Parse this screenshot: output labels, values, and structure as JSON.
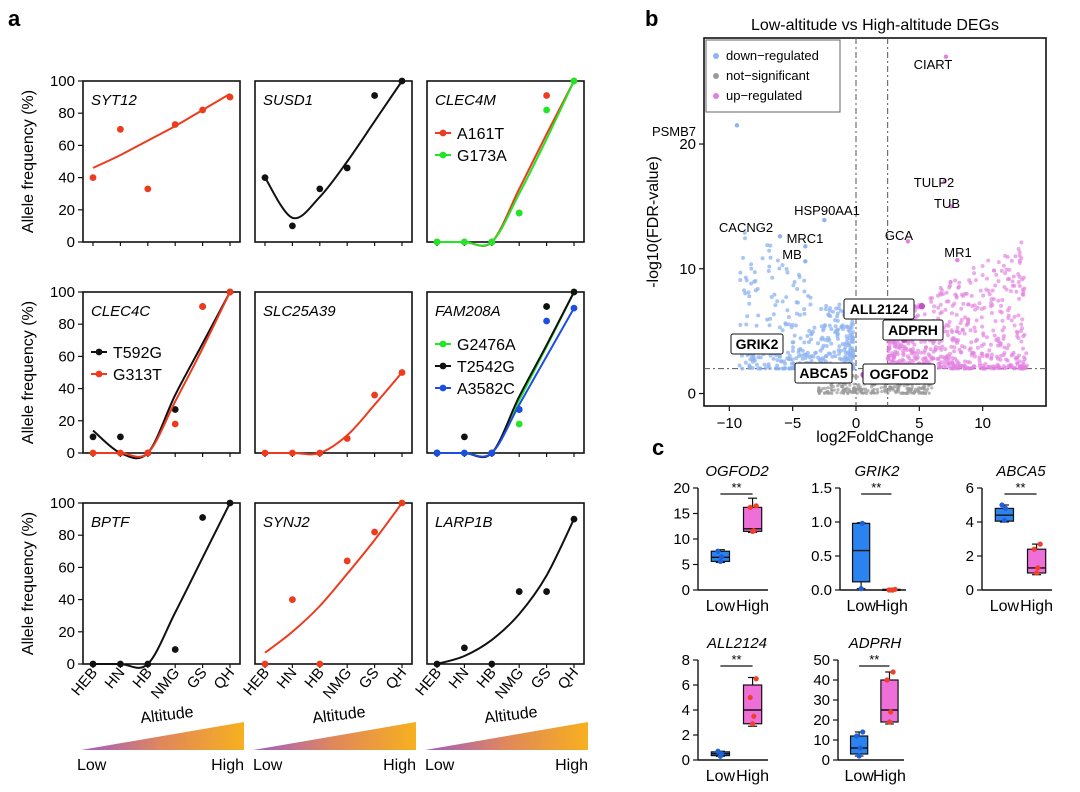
{
  "panel_labels": {
    "a": "a",
    "b": "b",
    "c": "c"
  },
  "chart_data": {
    "allele_panels": {
      "x_categories": [
        "HEB",
        "HN",
        "HB",
        "NMG",
        "GS",
        "QH"
      ],
      "ylabel": "Allele frequency (%)",
      "yticks": [
        0,
        20,
        40,
        60,
        80,
        100
      ],
      "ylim": [
        0,
        100
      ],
      "colors": {
        "red": "#ee3b1e",
        "green": "#21e626",
        "black": "#111111",
        "blue": "#1c4fe0"
      },
      "charts": [
        {
          "gene": "SYT12",
          "type": "scatter+fit",
          "series": [
            {
              "name": "",
              "color": "red",
              "values": [
                40,
                70,
                33,
                73,
                82,
                90
              ],
              "fit": [
                46,
                54,
                63,
                72,
                82,
                92
              ]
            }
          ]
        },
        {
          "gene": "SUSD1",
          "type": "scatter+fit",
          "series": [
            {
              "name": "",
              "color": "black",
              "values": [
                40,
                10,
                33,
                46,
                91,
                100
              ],
              "fit": [
                40,
                15,
                28,
                50,
                75,
                100
              ]
            }
          ]
        },
        {
          "gene": "CLEC4M",
          "type": "scatter+fit",
          "series": [
            {
              "name": "A161T",
              "color": "red",
              "values": [
                0,
                0,
                0,
                18,
                91,
                100
              ],
              "fit": [
                0,
                0,
                0,
                33,
                67,
                100
              ]
            },
            {
              "name": "G173A",
              "color": "green",
              "values": [
                0,
                0,
                0,
                18,
                82,
                100
              ],
              "fit": [
                0,
                0,
                0,
                30,
                64,
                100
              ]
            }
          ]
        },
        {
          "gene": "CLEC4C",
          "type": "scatter+fit",
          "series": [
            {
              "name": "T592G",
              "color": "black",
              "values": [
                10,
                10,
                0,
                27,
                91,
                100
              ],
              "fit": [
                14,
                0,
                0,
                36,
                68,
                100
              ]
            },
            {
              "name": "G313T",
              "color": "red",
              "values": [
                0,
                0,
                0,
                18,
                91,
                100
              ],
              "fit": [
                0,
                0,
                0,
                32,
                65,
                100
              ]
            }
          ]
        },
        {
          "gene": "SLC25A39",
          "type": "scatter+fit",
          "series": [
            {
              "name": "",
              "color": "red",
              "values": [
                0,
                0,
                0,
                9,
                36,
                50
              ],
              "fit": [
                0,
                0,
                0,
                11,
                30,
                50
              ]
            }
          ]
        },
        {
          "gene": "FAM208A",
          "type": "scatter+fit",
          "series": [
            {
              "name": "G2476A",
              "color": "green",
              "values": [
                0,
                0,
                0,
                18,
                91,
                100
              ],
              "fit": [
                0,
                0,
                0,
                33,
                66,
                100
              ]
            },
            {
              "name": "T2542G",
              "color": "black",
              "values": [
                0,
                10,
                0,
                27,
                91,
                100
              ],
              "fit": [
                0,
                0,
                0,
                35,
                67,
                100
              ]
            },
            {
              "name": "A3582C",
              "color": "blue",
              "values": [
                0,
                0,
                0,
                27,
                82,
                90
              ],
              "fit": [
                0,
                0,
                0,
                30,
                60,
                90
              ]
            }
          ]
        },
        {
          "gene": "BPTF",
          "type": "scatter+fit",
          "series": [
            {
              "name": "",
              "color": "black",
              "values": [
                0,
                0,
                0,
                9,
                91,
                100
              ],
              "fit": [
                0,
                0,
                0,
                32,
                66,
                100
              ]
            }
          ]
        },
        {
          "gene": "SYNJ2",
          "type": "scatter+fit",
          "series": [
            {
              "name": "",
              "color": "red",
              "values": [
                0,
                40,
                0,
                64,
                82,
                100
              ],
              "fit": [
                7,
                20,
                36,
                56,
                77,
                100
              ]
            }
          ]
        },
        {
          "gene": "LARP1B",
          "type": "scatter+fit",
          "series": [
            {
              "name": "",
              "color": "black",
              "values": [
                0,
                10,
                0,
                45,
                45,
                90
              ],
              "fit": [
                0,
                5,
                15,
                31,
                55,
                90
              ]
            }
          ]
        }
      ],
      "altitude": {
        "label": "Altitude",
        "low": "Low",
        "high": "High"
      }
    },
    "volcano": {
      "type": "scatter",
      "title": "Low-altitude vs High-altitude DEGs",
      "xlabel": "log2FoldChange",
      "ylabel": "-log10(FDR-value)",
      "xlim": [
        -12,
        15
      ],
      "ylim": [
        -1,
        28.5
      ],
      "xticks": [
        -10,
        -5,
        0,
        5,
        10
      ],
      "yticks": [
        0,
        10,
        20
      ],
      "thresholds": {
        "x": [
          0,
          2.5
        ],
        "y": 2
      },
      "legend": [
        {
          "label": "down−regulated",
          "color": "#8db3f0"
        },
        {
          "label": "not−significant",
          "color": "#9a9a9a"
        },
        {
          "label": "up−regulated",
          "color": "#e27fe0"
        }
      ],
      "labels": [
        {
          "text": "CIART",
          "x": 7.1,
          "y": 27.0
        },
        {
          "text": "PSMB7",
          "x": -9.4,
          "y": 21.5
        },
        {
          "text": "TULP2",
          "x": 7.0,
          "y": 17.0
        },
        {
          "text": "TUB",
          "x": 7.5,
          "y": 15.0
        },
        {
          "text": "HSP90AA1",
          "x": -2.5,
          "y": 13.9
        },
        {
          "text": "CACNG2",
          "x": -6.0,
          "y": 12.6
        },
        {
          "text": "GCA",
          "x": 4.1,
          "y": 12.2
        },
        {
          "text": "MRC1",
          "x": -4.0,
          "y": 11.8
        },
        {
          "text": "MB",
          "x": -4.0,
          "y": 10.6
        },
        {
          "text": "MR1",
          "x": 8.0,
          "y": 10.7
        }
      ],
      "boxed_labels": [
        {
          "text": "ALL2124",
          "x": 5.2,
          "y": 7.0
        },
        {
          "text": "ADPRH",
          "x": 3.8,
          "y": 4.3
        },
        {
          "text": "GRIK2",
          "x": -6.3,
          "y": 4.5
        },
        {
          "text": "ABCA5",
          "x": 0.6,
          "y": 1.5
        },
        {
          "text": "OGFOD2",
          "x": 3.0,
          "y": 1.6
        }
      ]
    },
    "boxplots": {
      "type": "box",
      "categories": [
        "Low",
        "High"
      ],
      "significance": "**",
      "colors": {
        "Low": "#2b83f0",
        "High": "#ef6fd8"
      },
      "genes": [
        {
          "gene": "OGFOD2",
          "ylim": [
            0,
            20
          ],
          "yticks": [
            0,
            5,
            10,
            15,
            20
          ],
          "boxes": [
            {
              "min": 5.4,
              "q1": 5.6,
              "median": 6.4,
              "q3": 7.6,
              "max": 7.9,
              "points": [
                5.6,
                6.5,
                7.6
              ]
            },
            {
              "min": 11.3,
              "q1": 11.5,
              "median": 12.0,
              "q3": 16.2,
              "max": 18.0,
              "points": [
                11.5,
                11.6,
                16.2,
                16.5
              ]
            }
          ]
        },
        {
          "gene": "GRIK2",
          "ylim": [
            0,
            1.5
          ],
          "yticks": [
            "0.0",
            "0.5",
            "1.0",
            "1.5"
          ],
          "boxes": [
            {
              "min": 0.02,
              "q1": 0.12,
              "median": 0.58,
              "q3": 0.98,
              "max": 0.99,
              "points": [
                0.02,
                0.98
              ]
            },
            {
              "min": 0.0,
              "q1": 0.0,
              "median": 0.0,
              "q3": 0.01,
              "max": 0.02,
              "points": [
                0.0,
                0.0,
                0.0,
                0.01
              ]
            }
          ]
        },
        {
          "gene": "ABCA5",
          "ylim": [
            0,
            6
          ],
          "yticks": [
            0,
            2,
            4,
            6
          ],
          "boxes": [
            {
              "min": 4.0,
              "q1": 4.05,
              "median": 4.4,
              "q3": 4.8,
              "max": 5.0,
              "points": [
                4.1,
                4.8,
                5.0
              ]
            },
            {
              "min": 0.9,
              "q1": 1.0,
              "median": 1.3,
              "q3": 2.4,
              "max": 2.7,
              "points": [
                1.0,
                1.3,
                2.4,
                2.7
              ]
            }
          ]
        },
        {
          "gene": "ALL2124",
          "ylim": [
            0,
            8
          ],
          "yticks": [
            0,
            2,
            4,
            6,
            8
          ],
          "boxes": [
            {
              "min": 0.3,
              "q1": 0.35,
              "median": 0.5,
              "q3": 0.65,
              "max": 0.7,
              "points": [
                0.3,
                0.5,
                0.7
              ]
            },
            {
              "min": 2.7,
              "q1": 2.9,
              "median": 4.0,
              "q3": 6.0,
              "max": 6.6,
              "points": [
                2.9,
                3.5,
                5.0,
                6.5
              ]
            }
          ]
        },
        {
          "gene": "ADPRH",
          "ylim": [
            0,
            50
          ],
          "yticks": [
            0,
            10,
            20,
            30,
            40,
            50
          ],
          "boxes": [
            {
              "min": 2,
              "q1": 3,
              "median": 6,
              "q3": 12,
              "max": 14,
              "points": [
                2,
                6,
                12,
                14
              ]
            },
            {
              "min": 18,
              "q1": 19,
              "median": 25,
              "q3": 40,
              "max": 44,
              "points": [
                19,
                24,
                40,
                44
              ]
            }
          ]
        }
      ]
    }
  }
}
